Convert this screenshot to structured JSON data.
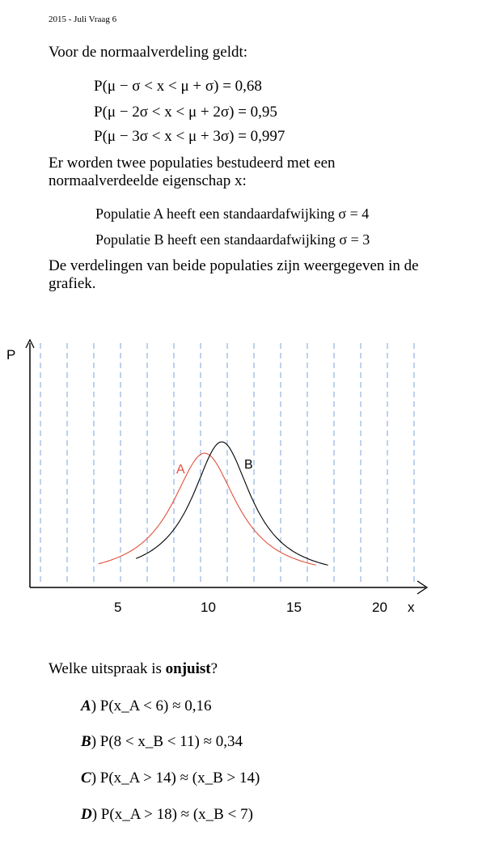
{
  "header": "2015 - Juli Vraag 6",
  "intro": "Voor de normaalverdeling geldt:",
  "formulas": [
    "P(μ − σ < x < μ + σ) = 0,68",
    "P(μ − 2σ < x < μ + 2σ) = 0,95",
    "P(μ − 3σ < x < μ + 3σ) = 0,997"
  ],
  "populations_text_1": "Er worden twee populaties bestudeerd met een",
  "populations_text_2": "normaalverdeelde eigenschap x:",
  "pop_a": "Populatie A heeft een standaardafwijking σ = 4",
  "pop_b": "Populatie B heeft een standaardafwijking σ = 3",
  "graph_text_1": "De verdelingen van beide populaties zijn weergegeven in de",
  "graph_text_2": "grafiek.",
  "question_prefix": "Welke uitspraak is ",
  "question_bold": "onjuist",
  "question_suffix": "?",
  "options": [
    {
      "letter": "A",
      "text": ") P(x_A < 6) ≈ 0,16"
    },
    {
      "letter": "B",
      "text": ") P(8 < x_B < 11) ≈ 0,34"
    },
    {
      "letter": "C",
      "text": ") P(x_A > 14) ≈ (x_B > 14)"
    },
    {
      "letter": "D",
      "text": ") P(x_A > 18) ≈ (x_B < 7)"
    }
  ],
  "chart_data": {
    "type": "line",
    "xlabel": "x",
    "ylabel": "P",
    "x_ticks": [
      "5",
      "10",
      "15",
      "20"
    ],
    "series": [
      {
        "name": "A",
        "mean": 10,
        "sd": 4,
        "color": "#e0503a"
      },
      {
        "name": "B",
        "mean": 11,
        "sd": 3,
        "color": "#000000"
      }
    ],
    "grid": "vertical dashed lines"
  }
}
